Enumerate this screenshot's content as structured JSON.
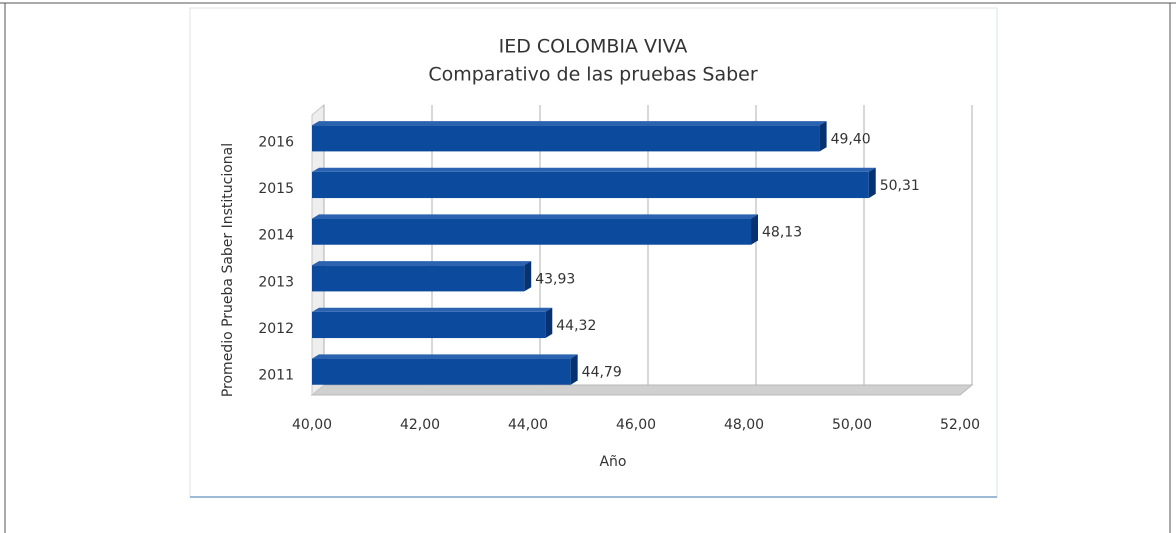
{
  "chart_data": {
    "type": "hbar3d",
    "title": "IED COLOMBIA VIVA",
    "subtitle": "Comparativo de las pruebas Saber",
    "x_label": "Año",
    "y_label": "Promedio Prueba Saber Institucional",
    "categories": [
      "2016",
      "2015",
      "2014",
      "2013",
      "2012",
      "2011"
    ],
    "values": [
      49.4,
      50.31,
      48.13,
      43.93,
      44.32,
      44.79
    ],
    "value_labels": [
      "49,40",
      "50,31",
      "48,13",
      "43,93",
      "44,32",
      "44,79"
    ],
    "color": "#0b4a9c",
    "xlim": [
      40,
      52
    ],
    "xticks": [
      {
        "value": 40,
        "label": "40,00"
      },
      {
        "value": 42,
        "label": "42,00"
      },
      {
        "value": 44,
        "label": "44,00"
      },
      {
        "value": 46,
        "label": "46,00"
      },
      {
        "value": 48,
        "label": "48,00"
      },
      {
        "value": 50,
        "label": "50,00"
      },
      {
        "value": 52,
        "label": "52,00"
      }
    ],
    "grid": true
  }
}
